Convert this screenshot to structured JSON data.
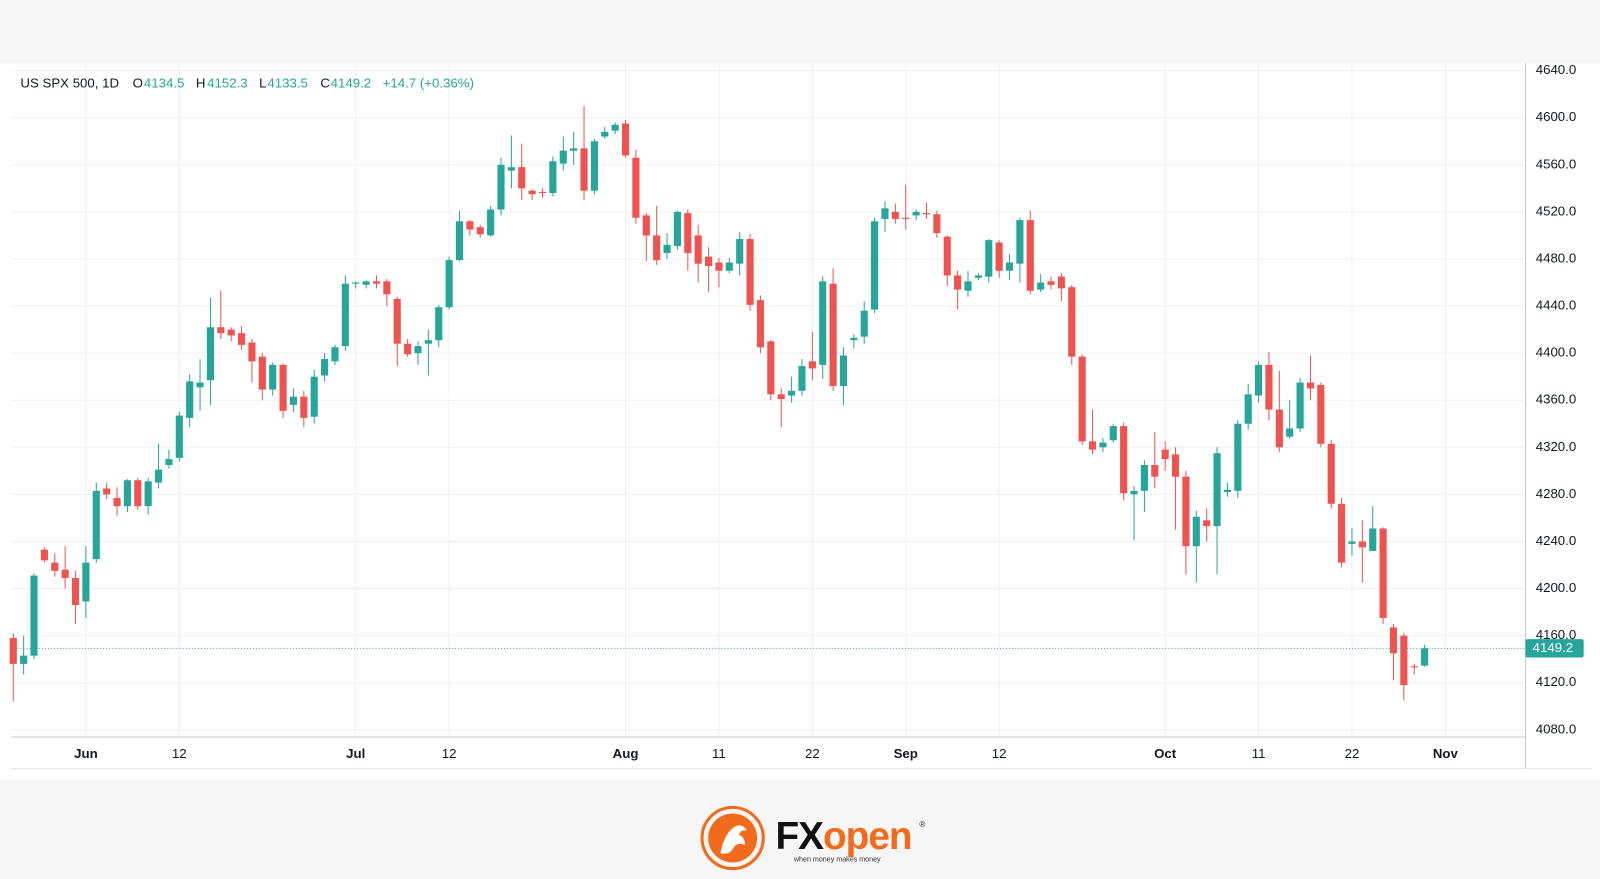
{
  "chart_data": {
    "type": "candlestick",
    "title": "US SPX 500, 1D",
    "ohlc_letters": [
      "O",
      "H",
      "L",
      "C"
    ],
    "change_label": "+14.7 (+0.36%)",
    "up_color": "#26a69a",
    "down_color": "#ef5350",
    "grid": true,
    "last_price_line": true,
    "categories": [
      null,
      null,
      null,
      null,
      null,
      null,
      null,
      "Jun",
      null,
      null,
      null,
      null,
      null,
      null,
      null,
      null,
      "12",
      null,
      null,
      null,
      null,
      null,
      null,
      null,
      null,
      null,
      null,
      null,
      null,
      null,
      null,
      null,
      null,
      "Jul",
      null,
      null,
      null,
      null,
      null,
      null,
      null,
      null,
      "12",
      null,
      null,
      null,
      null,
      null,
      null,
      null,
      null,
      null,
      null,
      null,
      null,
      null,
      null,
      null,
      null,
      "Aug",
      null,
      null,
      null,
      null,
      null,
      null,
      null,
      null,
      "11",
      null,
      null,
      null,
      null,
      null,
      null,
      null,
      null,
      "22",
      null,
      null,
      null,
      null,
      null,
      null,
      null,
      null,
      "Sep",
      null,
      null,
      null,
      null,
      null,
      null,
      null,
      null,
      "12",
      null,
      null,
      null,
      null,
      null,
      null,
      null,
      null,
      null,
      null,
      null,
      null,
      null,
      null,
      null,
      "Oct",
      null,
      null,
      null,
      null,
      null,
      null,
      null,
      null,
      "11",
      null,
      null,
      null,
      null,
      null,
      null,
      null,
      null,
      "22",
      null,
      null,
      null,
      null,
      null,
      null,
      null,
      null,
      "Nov"
    ],
    "open": [
      4158,
      4136,
      4143,
      4233,
      4222,
      4216,
      4209,
      4189,
      4225,
      4285,
      4277,
      4270,
      4292,
      4270,
      4290,
      4305,
      4311,
      4345,
      4371,
      4377,
      4422,
      4420,
      4417,
      4409,
      4397,
      4369,
      4390,
      4356,
      4363,
      4346,
      4381,
      4393,
      4406,
      4459,
      4458,
      4461,
      4461,
      4446,
      4408,
      4400,
      4408,
      4411,
      4439,
      4479,
      4512,
      4507,
      4500,
      4522,
      4555,
      4558,
      4538,
      4537,
      4536,
      4561,
      4572,
      4574,
      4538,
      4584,
      4589,
      4595,
      4566,
      4517,
      4500,
      4485,
      4491,
      4519,
      4500,
      4482,
      4477,
      4470,
      4476,
      4497,
      4445,
      4410,
      4365,
      4364,
      4368,
      4393,
      4390,
      4459,
      4372,
      4411,
      4414,
      4437,
      4514,
      4520,
      4515,
      4517,
      4519,
      4518,
      4499,
      4466,
      4453,
      4464,
      4465,
      4494,
      4470,
      4476,
      4513,
      4454,
      4461,
      4465,
      4456,
      4397,
      4325,
      4320,
      4326,
      4338,
      4280,
      4283,
      4305,
      4318,
      4314,
      4295,
      4236,
      4258,
      4253,
      4282,
      4283,
      4340,
      4364,
      4390,
      4352,
      4329,
      4336,
      4375,
      4373,
      4323,
      4272,
      4238,
      4240,
      4232,
      4251,
      4167,
      4160,
      4134,
      4134.5,
      null,
      null
    ],
    "high": [
      4162,
      4160,
      4213,
      4235,
      4230,
      4236,
      4215,
      4236,
      4290,
      4290,
      4286,
      4293,
      4294,
      4294,
      4323,
      4318,
      4350,
      4382,
      4395,
      4447,
      4453,
      4422,
      4423,
      4412,
      4400,
      4392,
      4391,
      4370,
      4368,
      4386,
      4400,
      4407,
      4466,
      4461,
      4462,
      4466,
      4463,
      4448,
      4412,
      4410,
      4420,
      4441,
      4482,
      4521,
      4513,
      4509,
      4525,
      4566,
      4585,
      4578,
      4539,
      4540,
      4567,
      4584,
      4588,
      4610,
      4582,
      4592,
      4596,
      4598,
      4573,
      4519,
      4525,
      4502,
      4521,
      4522,
      4509,
      4490,
      4481,
      4481,
      4503,
      4501,
      4449,
      4411,
      4370,
      4380,
      4395,
      4418,
      4465,
      4472,
      4405,
      4416,
      4444,
      4515,
      4529,
      4527,
      4543,
      4522,
      4528,
      4521,
      4500,
      4470,
      4470,
      4468,
      4497,
      4496,
      4484,
      4515,
      4521,
      4467,
      4465,
      4468,
      4458,
      4399,
      4352,
      4328,
      4340,
      4341,
      4287,
      4309,
      4333,
      4325,
      4320,
      4300,
      4266,
      4268,
      4320,
      4290,
      4343,
      4374,
      4393,
      4401,
      4385,
      4360,
      4379,
      4398,
      4375,
      4326,
      4277,
      4251,
      4258,
      4270,
      4252,
      4170,
      4162,
      4136,
      4152.3,
      null,
      null
    ],
    "low": [
      4104,
      4127,
      4140,
      4222,
      4210,
      4200,
      4170,
      4175,
      4222,
      4276,
      4262,
      4265,
      4267,
      4263,
      4285,
      4302,
      4308,
      4337,
      4351,
      4356,
      4412,
      4410,
      4403,
      4375,
      4360,
      4364,
      4345,
      4350,
      4337,
      4340,
      4376,
      4390,
      4402,
      4455,
      4455,
      4455,
      4440,
      4389,
      4397,
      4390,
      4381,
      4405,
      4437,
      4478,
      4500,
      4498,
      4499,
      4517,
      4540,
      4530,
      4530,
      4532,
      4533,
      4555,
      4560,
      4530,
      4535,
      4582,
      4586,
      4566,
      4510,
      4478,
      4475,
      4480,
      4488,
      4470,
      4460,
      4452,
      4456,
      4468,
      4466,
      4436,
      4400,
      4360,
      4337,
      4358,
      4364,
      4377,
      4378,
      4368,
      4356,
      4404,
      4408,
      4434,
      4503,
      4510,
      4505,
      4513,
      4514,
      4498,
      4457,
      4437,
      4448,
      4462,
      4460,
      4464,
      4462,
      4460,
      4450,
      4452,
      4454,
      4444,
      4390,
      4322,
      4314,
      4316,
      4324,
      4275,
      4241,
      4265,
      4285,
      4300,
      4250,
      4212,
      4205,
      4240,
      4212,
      4278,
      4277,
      4335,
      4358,
      4343,
      4316,
      4327,
      4333,
      4360,
      4320,
      4268,
      4218,
      4228,
      4205,
      4232,
      4170,
      4122,
      4105,
      4127,
      4133.5,
      null,
      null
    ],
    "close": [
      4136,
      4143,
      4211,
      4224,
      4215,
      4209,
      4186,
      4222,
      4283,
      4280,
      4270,
      4292,
      4270,
      4291,
      4301,
      4310,
      4347,
      4376,
      4375,
      4422,
      4417,
      4415,
      4407,
      4393,
      4369,
      4390,
      4351,
      4363,
      4345,
      4380,
      4395,
      4405,
      4459,
      4460,
      4461,
      4459,
      4450,
      4408,
      4399,
      4406,
      4411,
      4439,
      4479,
      4512,
      4505,
      4501,
      4522,
      4560,
      4558,
      4540,
      4535,
      4536,
      4563,
      4572,
      4574,
      4538,
      4580,
      4588,
      4594,
      4568,
      4515,
      4500,
      4479,
      4492,
      4520,
      4485,
      4476,
      4474,
      4470,
      4477,
      4497,
      4441,
      4405,
      4365,
      4361,
      4368,
      4389,
      4387,
      4461,
      4372,
      4398,
      4413,
      4436,
      4512,
      4523,
      4514,
      4514,
      4520,
      4518,
      4502,
      4466,
      4454,
      4461,
      4466,
      4496,
      4470,
      4477,
      4513,
      4453,
      4460,
      4458,
      4455,
      4397,
      4325,
      4318,
      4324,
      4338,
      4281,
      4283,
      4305,
      4295,
      4310,
      4295,
      4236,
      4261,
      4253,
      4315,
      4284,
      4340,
      4365,
      4390,
      4352,
      4320,
      4336,
      4375,
      4370,
      4323,
      4272,
      4222,
      4240,
      4235,
      4251,
      4175,
      4145,
      4118,
      4133,
      4149.2,
      null,
      null
    ],
    "ylim": [
      4080,
      4640
    ],
    "yticks": [
      {
        "value": 4080,
        "label": "4080.0"
      },
      {
        "value": 4120,
        "label": "4120.0"
      },
      {
        "value": 4160,
        "label": "4160.0"
      },
      {
        "value": 4200,
        "label": "4200.0"
      },
      {
        "value": 4240,
        "label": "4240.0"
      },
      {
        "value": 4280,
        "label": "4280.0"
      },
      {
        "value": 4320,
        "label": "4320.0"
      },
      {
        "value": 4360,
        "label": "4360.0"
      },
      {
        "value": 4400,
        "label": "4400.0"
      },
      {
        "value": 4440,
        "label": "4440.0"
      },
      {
        "value": 4480,
        "label": "4480.0"
      },
      {
        "value": 4520,
        "label": "4520.0"
      },
      {
        "value": 4560,
        "label": "4560.0"
      },
      {
        "value": 4600,
        "label": "4600.0"
      },
      {
        "value": 4640,
        "label": "4640.0"
      }
    ]
  },
  "logo": {
    "brand": [
      "FX",
      "open"
    ],
    "mark": "®",
    "tagline": "when money makes money"
  }
}
